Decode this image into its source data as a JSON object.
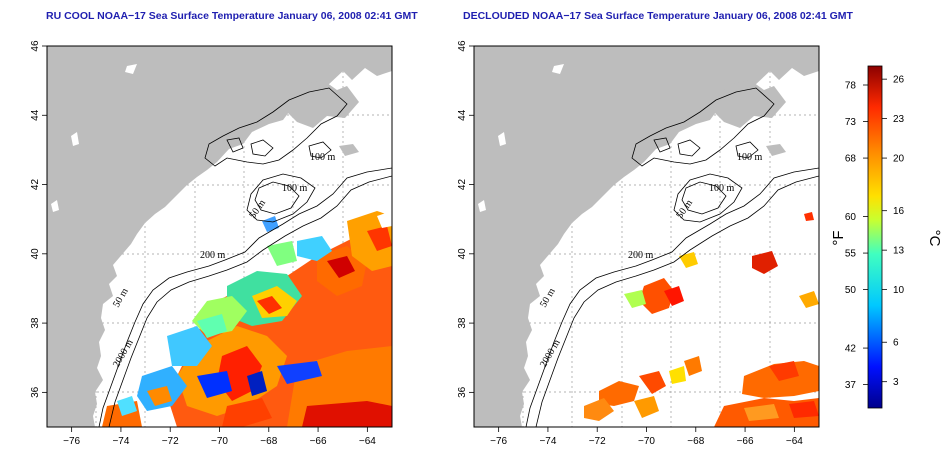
{
  "maps": [
    {
      "title": "RU COOL NOAA−17 Sea Surface Temperature January 06, 2008 02:41 GMT",
      "contour_labels": [
        "100 m",
        "100 m",
        "50 m",
        "200 m",
        "50 m",
        "2000 m"
      ]
    },
    {
      "title": "DECLOUDED NOAA−17 Sea Surface Temperature January 06, 2008 02:41 GMT",
      "contour_labels": [
        "100 m",
        "100 m",
        "50 m",
        "200 m",
        "50 m",
        "2000 m"
      ]
    }
  ],
  "axes": {
    "lon_ticks": [
      "−76",
      "−74",
      "−72",
      "−70",
      "−68",
      "−66",
      "−64"
    ],
    "lat_ticks": [
      "46",
      "44",
      "42",
      "40",
      "38",
      "36"
    ]
  },
  "colorbar": {
    "unit_f": "°F",
    "unit_c": "°C",
    "f_ticks": [
      "78",
      "73",
      "68",
      "60",
      "55",
      "50",
      "42",
      "37"
    ],
    "c_ticks": [
      "26",
      "23",
      "20",
      "16",
      "13",
      "10",
      "6",
      "3"
    ]
  },
  "colors": {
    "land": "#bdbdbd",
    "title": "#1f1fb0",
    "grid": "#9a9a9a"
  },
  "chart_data": {
    "type": "heatmap",
    "variable": "Sea Surface Temperature",
    "lon_range": [
      -77,
      -63
    ],
    "lat_range": [
      35,
      46
    ],
    "colorbar_range_c": [
      1,
      27
    ],
    "colorbar_f": [
      78,
      73,
      68,
      60,
      55,
      50,
      42,
      37
    ],
    "colorbar_c": [
      26,
      23,
      20,
      16,
      13,
      10,
      6,
      3
    ],
    "grid": true
  }
}
